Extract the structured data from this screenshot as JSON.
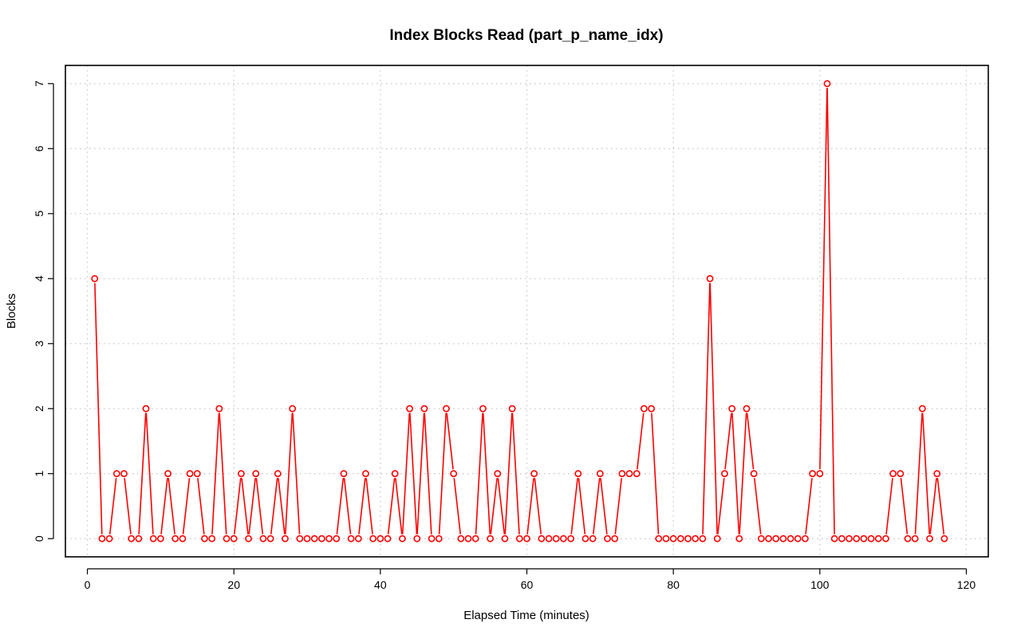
{
  "chart_data": {
    "type": "line",
    "title": "Index Blocks Read (part_p_name_idx)",
    "xlabel": "Elapsed Time (minutes)",
    "ylabel": "Blocks",
    "xlim": [
      -3,
      123
    ],
    "ylim": [
      -0.28,
      7.28
    ],
    "x_ticks": [
      0,
      20,
      40,
      60,
      80,
      100,
      120
    ],
    "y_ticks": [
      0,
      1,
      2,
      3,
      4,
      5,
      6,
      7
    ],
    "grid": true,
    "series_color": "#ff0000",
    "series": [
      {
        "x_start": 1,
        "x_step": 1,
        "values": [
          4,
          0,
          0,
          1,
          1,
          0,
          0,
          2,
          0,
          0,
          1,
          0,
          0,
          1,
          1,
          0,
          0,
          2,
          0,
          0,
          1,
          0,
          1,
          0,
          0,
          1,
          0,
          2,
          0,
          0,
          0,
          0,
          0,
          0,
          1,
          0,
          0,
          1,
          0,
          0,
          0,
          1,
          0,
          2,
          0,
          2,
          0,
          0,
          2,
          1,
          0,
          0,
          0,
          2,
          0,
          1,
          0,
          2,
          0,
          0,
          1,
          0,
          0,
          0,
          0,
          0,
          1,
          0,
          0,
          1,
          0,
          0,
          1,
          1,
          1,
          2,
          2,
          0,
          0,
          0,
          0,
          0,
          0,
          0,
          4,
          0,
          1,
          2,
          0,
          2,
          1,
          0,
          0,
          0,
          0,
          0,
          0,
          0,
          1,
          1,
          7,
          0,
          0,
          0,
          0,
          0,
          0,
          0,
          0,
          1,
          1,
          0,
          0,
          2,
          0,
          1,
          0
        ]
      }
    ]
  }
}
